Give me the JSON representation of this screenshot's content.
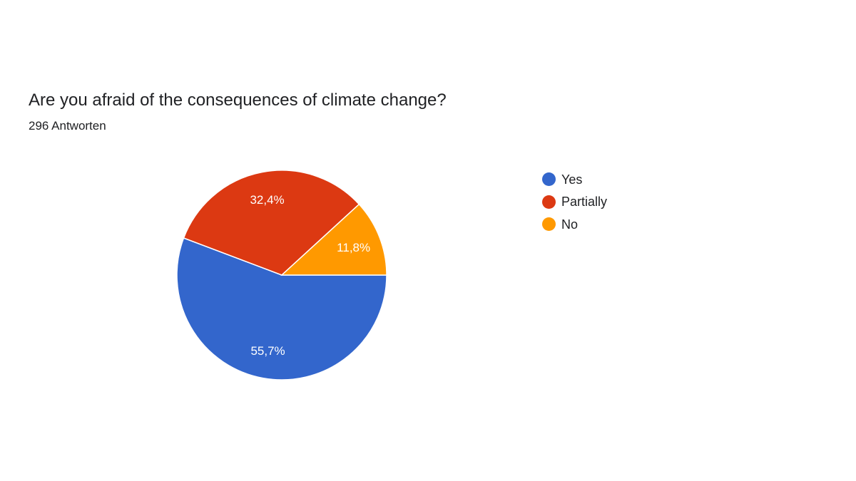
{
  "question": {
    "title": "Are you afraid of the consequences of climate change?",
    "responses": "296 Antworten"
  },
  "chart_data": {
    "type": "pie",
    "title": "Are you afraid of the consequences of climate change?",
    "subtitle": "296 Antworten",
    "legend_position": "right",
    "slices": [
      {
        "label": "Yes",
        "value": 55.7,
        "display": "55,7%",
        "color": "#3366cc"
      },
      {
        "label": "Partially",
        "value": 32.4,
        "display": "32,4%",
        "color": "#dc3912"
      },
      {
        "label": "No",
        "value": 11.8,
        "display": "11,8%",
        "color": "#ff9900"
      }
    ]
  }
}
